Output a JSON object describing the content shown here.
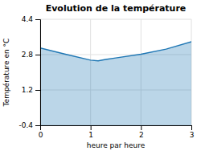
{
  "chart_data": {
    "type": "area",
    "title": "Evolution de la température",
    "xlabel": "heure par heure",
    "ylabel": "Température en °C",
    "x": [
      0,
      0.5,
      1.0,
      1.15,
      1.3,
      1.5,
      2.0,
      2.5,
      3.0
    ],
    "values": [
      3.1,
      2.82,
      2.55,
      2.52,
      2.58,
      2.65,
      2.82,
      3.05,
      3.38
    ],
    "xlim": [
      0,
      3
    ],
    "ylim": [
      -0.4,
      4.4
    ],
    "xticks": [
      0,
      1,
      2,
      3
    ],
    "yticks": [
      -0.4,
      1.2,
      2.8,
      4.4
    ],
    "grid": true
  }
}
